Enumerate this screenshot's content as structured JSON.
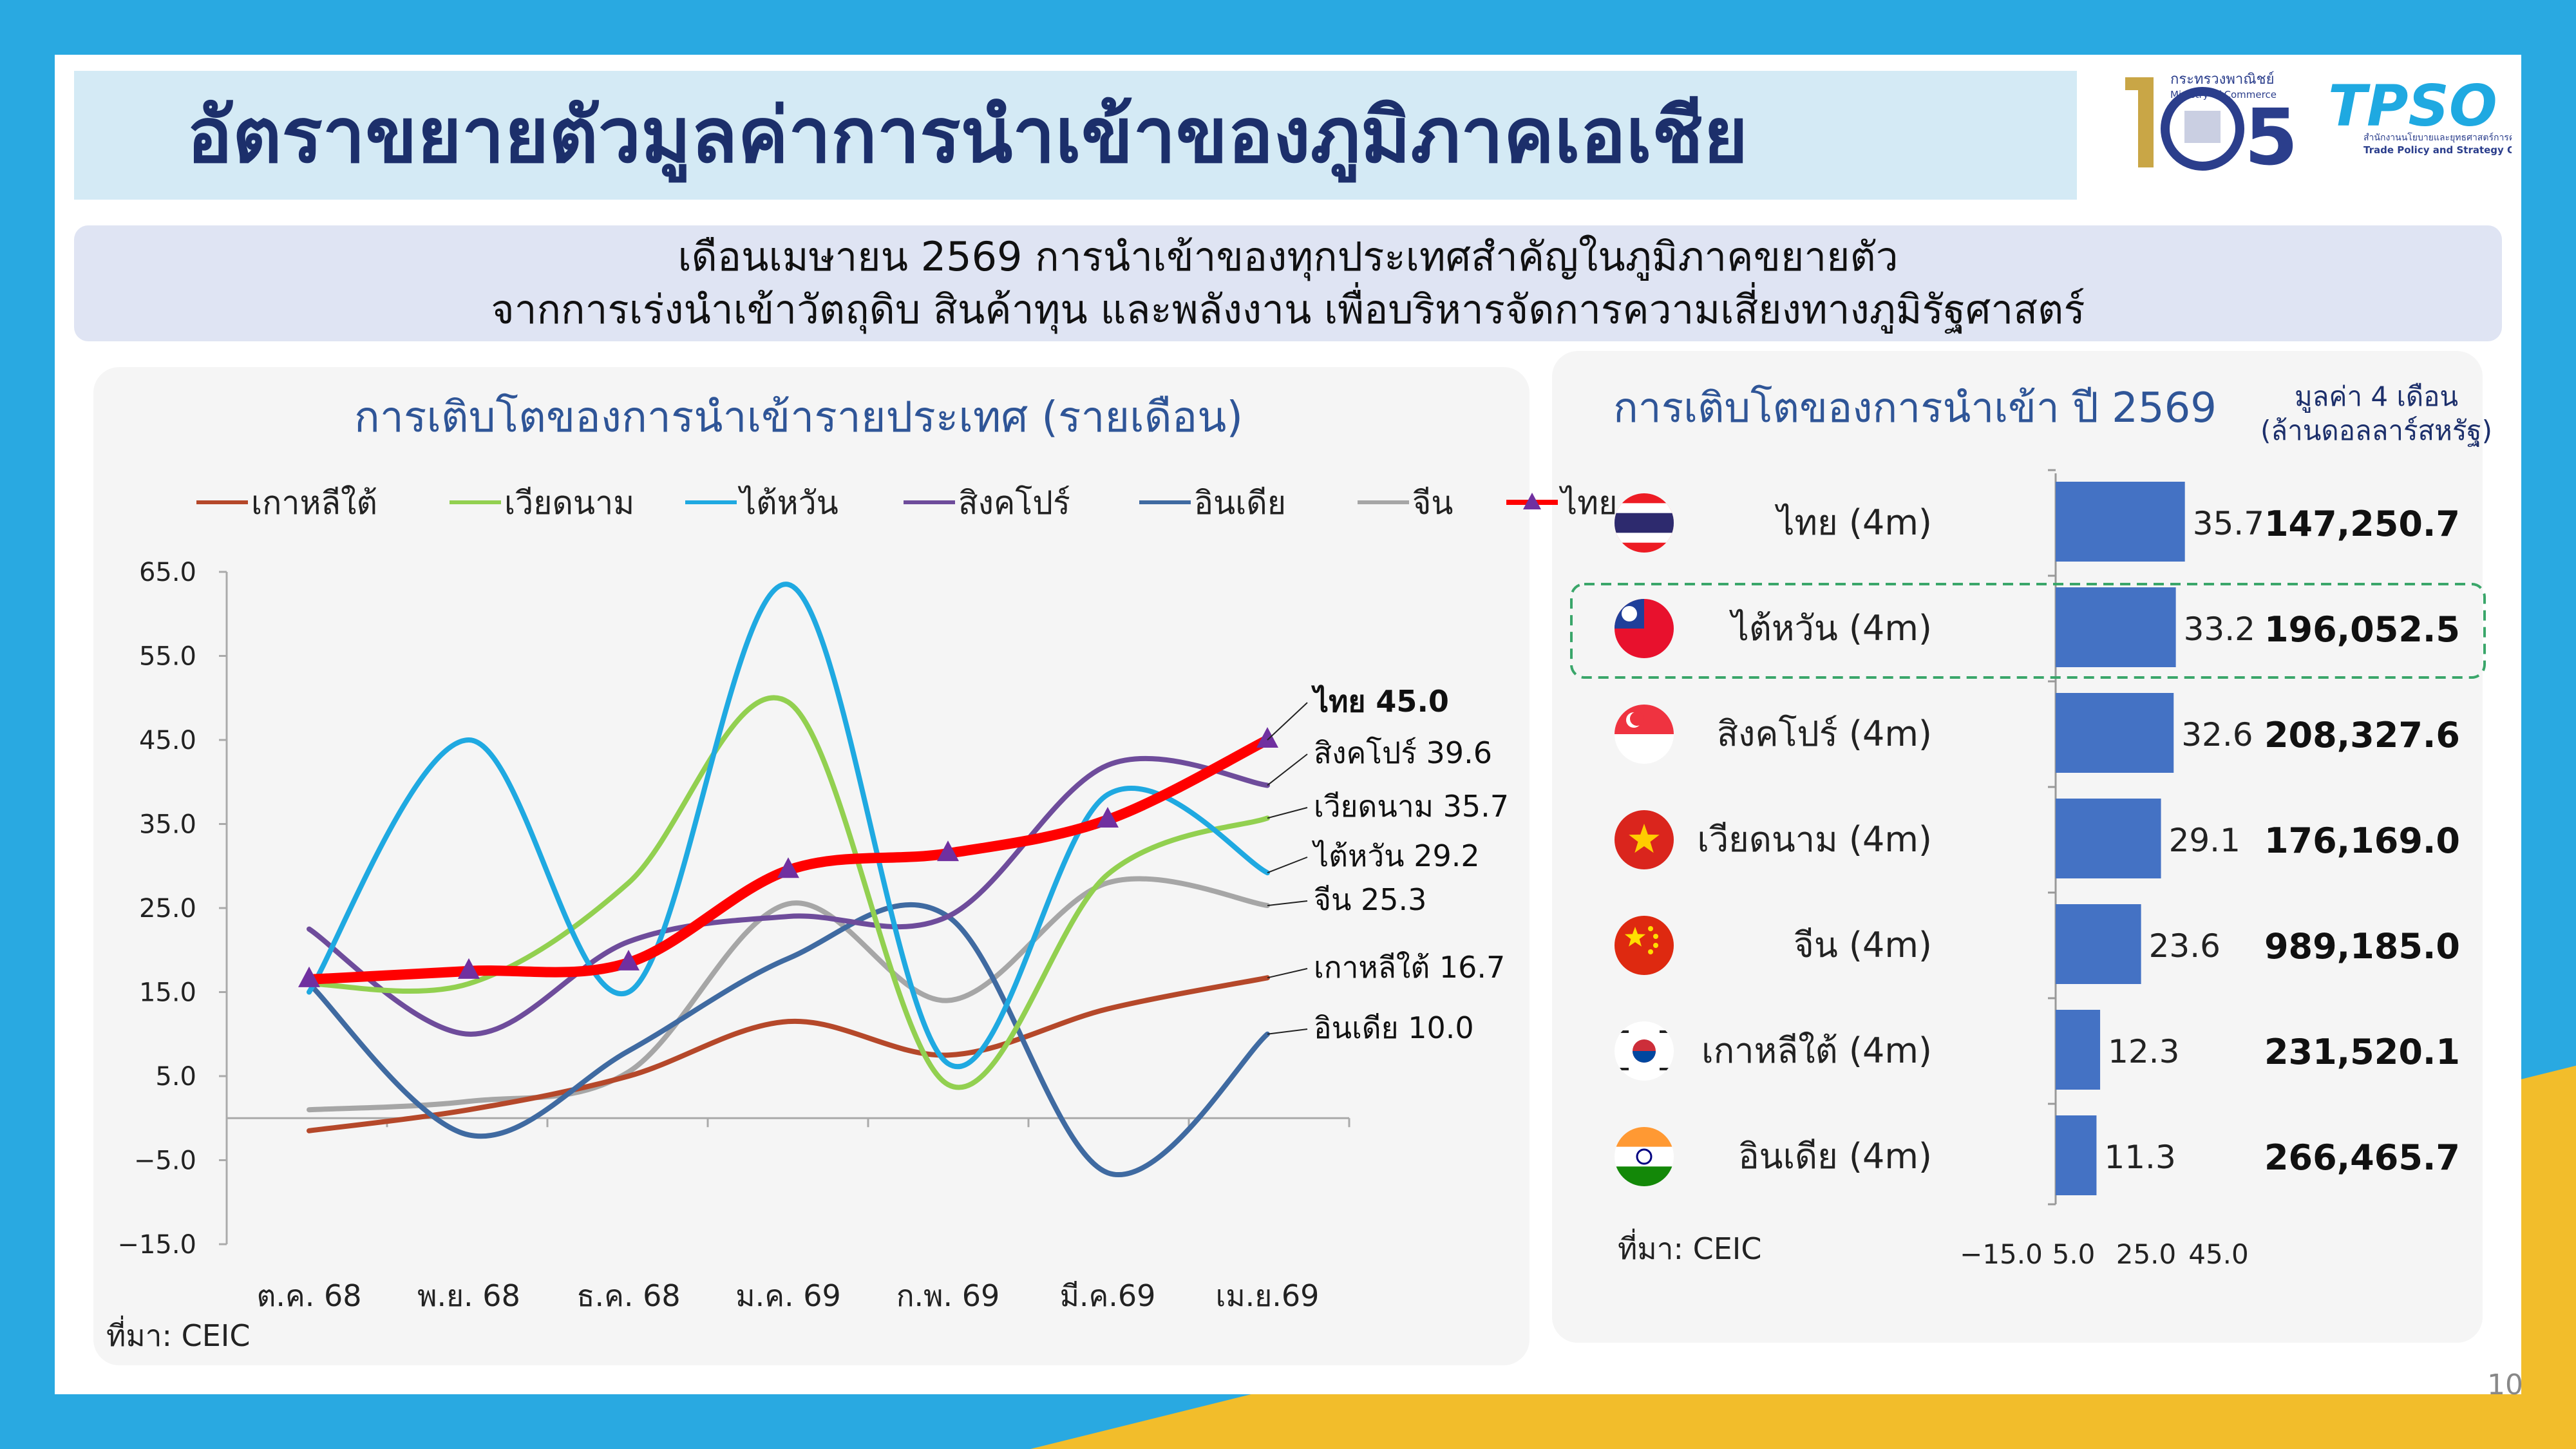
{
  "page": {
    "title": "อัตราขยายตัวมูลค่าการนำเข้าของภูมิภาคเอเชีย",
    "subtitle_line1": "เดือนเมษายน 2569 การนำเข้าของทุกประเทศสำคัญในภูมิภาคขยายตัว",
    "subtitle_line2": "จากการเร่งนำเข้าวัตถุดิบ สินค้าทุน และพลังงาน เพื่อบริหารจัดการความเสี่ยงทางภูมิรัฐศาสตร์",
    "page_number": "10",
    "logo_moc_text1": "กระทรวงพาณิชย์",
    "logo_moc_text2": "Ministry of Commerce",
    "logo_tpso_text": "TPSO",
    "logo_tpso_sub1": "สำนักงานนโยบายและยุทธศาสตร์การค้า",
    "logo_tpso_sub2": "Trade Policy and Strategy Office"
  },
  "colors": {
    "thai": "#ff0000",
    "korea": "#b5482a",
    "vietnam": "#92d050",
    "taiwan": "#1fa9e1",
    "singapore": "#6e4c9b",
    "india": "#3f6aa1",
    "china": "#a6a6a6",
    "bar": "#4472c4",
    "marker": "#7030a0"
  },
  "chart_data": [
    {
      "type": "line",
      "title": "การเติบโตของการนำเข้ารายประเทศ (รายเดือน)",
      "categories": [
        "ต.ค. 68",
        "พ.ย. 68",
        "ธ.ค. 68",
        "ม.ค. 69",
        "ก.พ. 69",
        "มี.ค.69",
        "เม.ย.69"
      ],
      "ylim": [
        -15,
        65
      ],
      "yticks": [
        "65.0",
        "55.0",
        "45.0",
        "35.0",
        "25.0",
        "15.0",
        "5.0",
        "−5.0",
        "−15.0"
      ],
      "legend_position": "top",
      "series": [
        {
          "name": "เกาหลีใต้",
          "key": "korea",
          "values": [
            -1.5,
            1,
            5,
            11.5,
            7.5,
            13,
            16.7
          ],
          "end_label": "เกาหลีใต้ 16.7"
        },
        {
          "name": "เวียดนาม",
          "key": "vietnam",
          "values": [
            16,
            16,
            28,
            49.5,
            4,
            29,
            35.7
          ],
          "end_label": "เวียดนาม 35.7"
        },
        {
          "name": "ไต้หวัน",
          "key": "taiwan",
          "values": [
            15,
            45,
            15,
            63.5,
            6.5,
            38.5,
            29.2
          ],
          "end_label": "ไต้หวัน 29.2"
        },
        {
          "name": "สิงคโปร์",
          "key": "singapore",
          "values": [
            22.5,
            10,
            21,
            24,
            24,
            42,
            39.6
          ],
          "end_label": "สิงคโปร์ 39.6"
        },
        {
          "name": "อินเดีย",
          "key": "india",
          "values": [
            16,
            -2,
            8,
            19,
            24,
            -6.5,
            10.0
          ],
          "end_label": "อินเดีย 10.0"
        },
        {
          "name": "จีน",
          "key": "china",
          "values": [
            1,
            2,
            5.5,
            25.5,
            14,
            28,
            25.3
          ],
          "end_label": "จีน 25.3"
        },
        {
          "name": "ไทย",
          "key": "thai",
          "values": [
            16.5,
            17.5,
            18.5,
            29.5,
            31.5,
            35.5,
            45.0
          ],
          "end_label": "ไทย 45.0"
        }
      ],
      "source": "ที่มา: CEIC"
    },
    {
      "type": "bar",
      "title": "การเติบโตของการนำเข้า ปี 2569",
      "value_header_line1": "มูลค่า 4 เดือน",
      "value_header_line2": "(ล้านดอลลาร์สหรัฐ)",
      "categories": [
        "ไทย (4m)",
        "ไต้หวัน (4m)",
        "สิงคโปร์ (4m)",
        "เวียดนาม (4m)",
        "จีน (4m)",
        "เกาหลีใต้ (4m)",
        "อินเดีย (4m)"
      ],
      "flags": [
        "thailand-flag",
        "taiwan-flag",
        "singapore-flag",
        "vietnam-flag",
        "china-flag",
        "south-korea-flag",
        "india-flag"
      ],
      "values": [
        35.7,
        33.2,
        32.6,
        29.1,
        23.6,
        12.3,
        11.3
      ],
      "value_labels": [
        "35.7",
        "33.2",
        "32.6",
        "29.1",
        "23.6",
        "12.3",
        "11.3"
      ],
      "amounts": [
        "147,250.7",
        "196,052.5",
        "208,327.6",
        "176,169.0",
        "989,185.0",
        "231,520.1",
        "266,465.7"
      ],
      "highlight": "ไต้หวัน (4m)",
      "xlim": [
        -15,
        45
      ],
      "xticks": [
        "−15.0",
        "5.0",
        "25.0",
        "45.0"
      ],
      "source": "ที่มา: CEIC"
    }
  ]
}
